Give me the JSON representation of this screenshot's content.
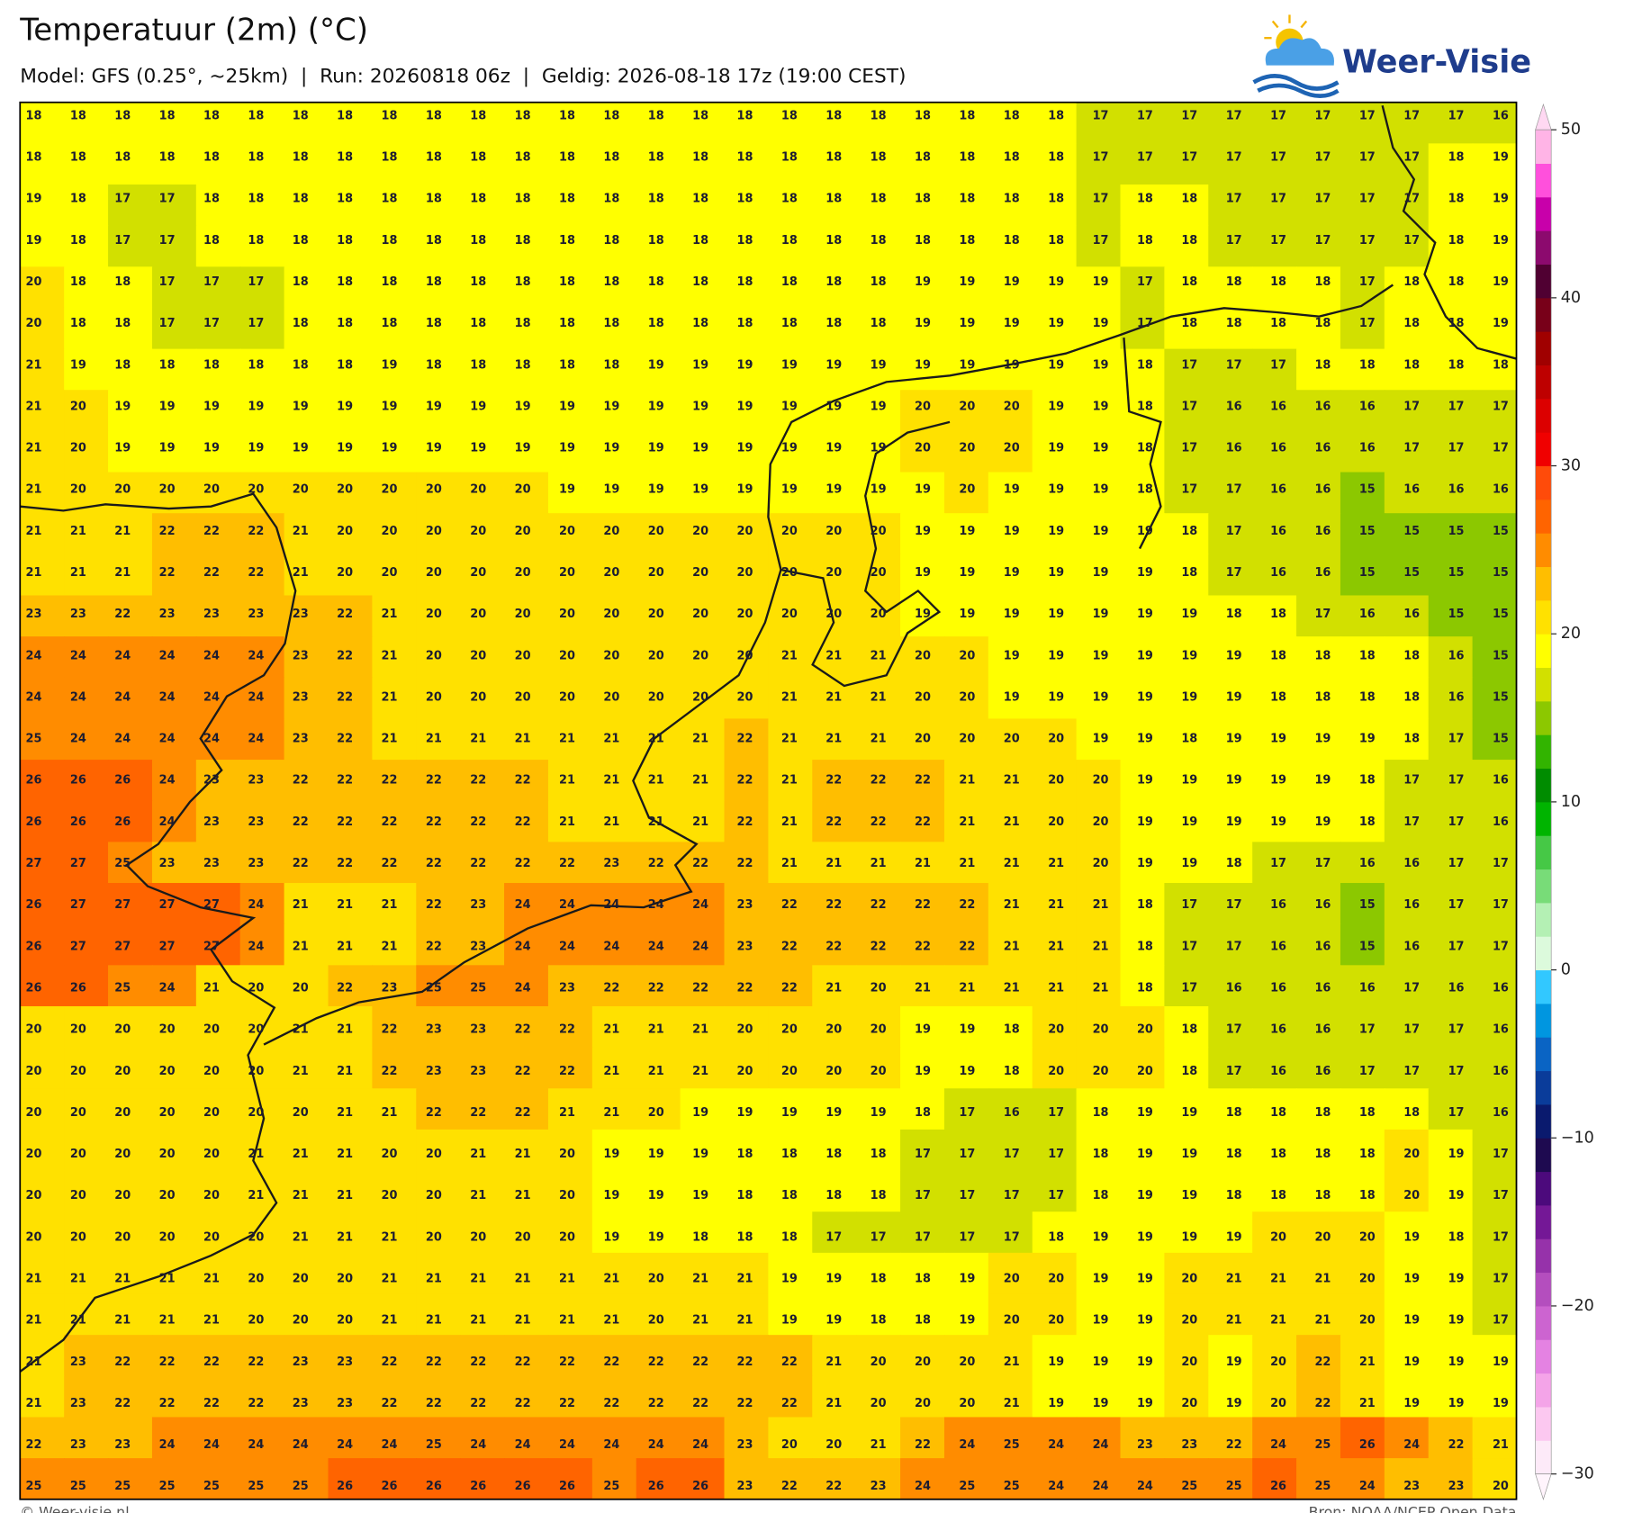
{
  "header": {
    "title": "Temperatuur (2m) (°C)",
    "subtitle": "Model: GFS (0.25°, ~25km)  |  Run: 20260818 06z  |  Geldig: 2026-08-18 17z (19:00 CEST)"
  },
  "logo": {
    "text": "Weer-Visie"
  },
  "map": {
    "values": [
      [
        18,
        18,
        18,
        18,
        18,
        18,
        18,
        18,
        18,
        18,
        18,
        18,
        18,
        18,
        18,
        18,
        18,
        18,
        18,
        18,
        18,
        18,
        18,
        18,
        17,
        17,
        17,
        17,
        17,
        17,
        17,
        17,
        17,
        16
      ],
      [
        18,
        18,
        18,
        18,
        18,
        18,
        18,
        18,
        18,
        18,
        18,
        18,
        18,
        18,
        18,
        18,
        18,
        18,
        18,
        18,
        18,
        18,
        18,
        18,
        17,
        17,
        17,
        17,
        17,
        17,
        17,
        17,
        18,
        19
      ],
      [
        19,
        18,
        17,
        17,
        18,
        18,
        18,
        18,
        18,
        18,
        18,
        18,
        18,
        18,
        18,
        18,
        18,
        18,
        18,
        18,
        18,
        18,
        18,
        18,
        17,
        18,
        18,
        17,
        17,
        17,
        17,
        17,
        18,
        19
      ],
      [
        19,
        18,
        17,
        17,
        18,
        18,
        18,
        18,
        18,
        18,
        18,
        18,
        18,
        18,
        18,
        18,
        18,
        18,
        18,
        18,
        18,
        18,
        18,
        18,
        17,
        18,
        18,
        17,
        17,
        17,
        17,
        17,
        18,
        19
      ],
      [
        20,
        18,
        18,
        17,
        17,
        17,
        18,
        18,
        18,
        18,
        18,
        18,
        18,
        18,
        18,
        18,
        18,
        18,
        18,
        18,
        19,
        19,
        19,
        19,
        19,
        17,
        18,
        18,
        18,
        18,
        17,
        18,
        18,
        19
      ],
      [
        20,
        18,
        18,
        17,
        17,
        17,
        18,
        18,
        18,
        18,
        18,
        18,
        18,
        18,
        18,
        18,
        18,
        18,
        18,
        18,
        19,
        19,
        19,
        19,
        19,
        17,
        18,
        18,
        18,
        18,
        17,
        18,
        18,
        19
      ],
      [
        21,
        19,
        18,
        18,
        18,
        18,
        18,
        18,
        19,
        18,
        18,
        18,
        18,
        18,
        19,
        19,
        19,
        19,
        19,
        19,
        19,
        19,
        19,
        19,
        19,
        18,
        17,
        17,
        17,
        18,
        18,
        18,
        18,
        18
      ],
      [
        21,
        20,
        19,
        19,
        19,
        19,
        19,
        19,
        19,
        19,
        19,
        19,
        19,
        19,
        19,
        19,
        19,
        19,
        19,
        19,
        20,
        20,
        20,
        19,
        19,
        18,
        17,
        16,
        16,
        16,
        16,
        17,
        17,
        17
      ],
      [
        21,
        20,
        19,
        19,
        19,
        19,
        19,
        19,
        19,
        19,
        19,
        19,
        19,
        19,
        19,
        19,
        19,
        19,
        19,
        19,
        20,
        20,
        20,
        19,
        19,
        18,
        17,
        16,
        16,
        16,
        16,
        17,
        17,
        17
      ],
      [
        21,
        20,
        20,
        20,
        20,
        20,
        20,
        20,
        20,
        20,
        20,
        20,
        19,
        19,
        19,
        19,
        19,
        19,
        19,
        19,
        19,
        20,
        19,
        19,
        19,
        18,
        17,
        17,
        16,
        16,
        15,
        16,
        16,
        16
      ],
      [
        21,
        21,
        21,
        22,
        22,
        22,
        21,
        20,
        20,
        20,
        20,
        20,
        20,
        20,
        20,
        20,
        20,
        20,
        20,
        20,
        19,
        19,
        19,
        19,
        19,
        19,
        18,
        17,
        16,
        16,
        15,
        15,
        15,
        15
      ],
      [
        21,
        21,
        21,
        22,
        22,
        22,
        21,
        20,
        20,
        20,
        20,
        20,
        20,
        20,
        20,
        20,
        20,
        20,
        20,
        20,
        19,
        19,
        19,
        19,
        19,
        19,
        18,
        17,
        16,
        16,
        15,
        15,
        15,
        15
      ],
      [
        23,
        23,
        22,
        23,
        23,
        23,
        23,
        22,
        21,
        20,
        20,
        20,
        20,
        20,
        20,
        20,
        20,
        20,
        20,
        20,
        19,
        19,
        19,
        19,
        19,
        19,
        19,
        18,
        18,
        17,
        16,
        16,
        15,
        15
      ],
      [
        24,
        24,
        24,
        24,
        24,
        24,
        23,
        22,
        21,
        20,
        20,
        20,
        20,
        20,
        20,
        20,
        20,
        21,
        21,
        21,
        20,
        20,
        19,
        19,
        19,
        19,
        19,
        19,
        18,
        18,
        18,
        18,
        16,
        15
      ],
      [
        24,
        24,
        24,
        24,
        24,
        24,
        23,
        22,
        21,
        20,
        20,
        20,
        20,
        20,
        20,
        20,
        20,
        21,
        21,
        21,
        20,
        20,
        19,
        19,
        19,
        19,
        19,
        19,
        18,
        18,
        18,
        18,
        16,
        15
      ],
      [
        25,
        24,
        24,
        24,
        24,
        24,
        23,
        22,
        21,
        21,
        21,
        21,
        21,
        21,
        21,
        21,
        22,
        21,
        21,
        21,
        20,
        20,
        20,
        20,
        19,
        19,
        18,
        19,
        19,
        19,
        19,
        18,
        17,
        15
      ],
      [
        26,
        26,
        26,
        24,
        23,
        23,
        22,
        22,
        22,
        22,
        22,
        22,
        21,
        21,
        21,
        21,
        22,
        21,
        22,
        22,
        22,
        21,
        21,
        20,
        20,
        19,
        19,
        19,
        19,
        19,
        18,
        17,
        17,
        16
      ],
      [
        26,
        26,
        26,
        24,
        23,
        23,
        22,
        22,
        22,
        22,
        22,
        22,
        21,
        21,
        21,
        21,
        22,
        21,
        22,
        22,
        22,
        21,
        21,
        20,
        20,
        19,
        19,
        19,
        19,
        19,
        18,
        17,
        17,
        16
      ],
      [
        27,
        27,
        25,
        23,
        23,
        23,
        22,
        22,
        22,
        22,
        22,
        22,
        22,
        23,
        22,
        22,
        22,
        21,
        21,
        21,
        21,
        21,
        21,
        21,
        20,
        19,
        19,
        18,
        17,
        17,
        16,
        16,
        17,
        17
      ],
      [
        26,
        27,
        27,
        27,
        27,
        24,
        21,
        21,
        21,
        22,
        23,
        24,
        24,
        24,
        24,
        24,
        23,
        22,
        22,
        22,
        22,
        22,
        21,
        21,
        21,
        18,
        17,
        17,
        16,
        16,
        15,
        16,
        17,
        17
      ],
      [
        26,
        27,
        27,
        27,
        27,
        24,
        21,
        21,
        21,
        22,
        23,
        24,
        24,
        24,
        24,
        24,
        23,
        22,
        22,
        22,
        22,
        22,
        21,
        21,
        21,
        18,
        17,
        17,
        16,
        16,
        15,
        16,
        17,
        17
      ],
      [
        26,
        26,
        25,
        24,
        21,
        20,
        20,
        22,
        23,
        25,
        25,
        24,
        23,
        22,
        22,
        22,
        22,
        22,
        21,
        20,
        21,
        21,
        21,
        21,
        21,
        18,
        17,
        16,
        16,
        16,
        16,
        17,
        16,
        16
      ],
      [
        20,
        20,
        20,
        20,
        20,
        20,
        21,
        21,
        22,
        23,
        23,
        22,
        22,
        21,
        21,
        21,
        20,
        20,
        20,
        20,
        19,
        19,
        18,
        20,
        20,
        20,
        18,
        17,
        16,
        16,
        17,
        17,
        17,
        16
      ],
      [
        20,
        20,
        20,
        20,
        20,
        20,
        21,
        21,
        22,
        23,
        23,
        22,
        22,
        21,
        21,
        21,
        20,
        20,
        20,
        20,
        19,
        19,
        18,
        20,
        20,
        20,
        18,
        17,
        16,
        16,
        17,
        17,
        17,
        16
      ],
      [
        20,
        20,
        20,
        20,
        20,
        20,
        20,
        21,
        21,
        22,
        22,
        22,
        21,
        21,
        20,
        19,
        19,
        19,
        19,
        19,
        18,
        17,
        16,
        17,
        18,
        19,
        19,
        18,
        18,
        18,
        18,
        18,
        17,
        16
      ],
      [
        20,
        20,
        20,
        20,
        20,
        21,
        21,
        21,
        20,
        20,
        21,
        21,
        20,
        19,
        19,
        19,
        18,
        18,
        18,
        18,
        17,
        17,
        17,
        17,
        18,
        19,
        19,
        18,
        18,
        18,
        18,
        20,
        19,
        17
      ],
      [
        20,
        20,
        20,
        20,
        20,
        21,
        21,
        21,
        20,
        20,
        21,
        21,
        20,
        19,
        19,
        19,
        18,
        18,
        18,
        18,
        17,
        17,
        17,
        17,
        18,
        19,
        19,
        18,
        18,
        18,
        18,
        20,
        19,
        17
      ],
      [
        20,
        20,
        20,
        20,
        20,
        20,
        21,
        21,
        21,
        20,
        20,
        20,
        20,
        19,
        19,
        18,
        18,
        18,
        17,
        17,
        17,
        17,
        17,
        18,
        19,
        19,
        19,
        19,
        20,
        20,
        20,
        19,
        18,
        17
      ],
      [
        21,
        21,
        21,
        21,
        21,
        20,
        20,
        20,
        21,
        21,
        21,
        21,
        21,
        21,
        20,
        21,
        21,
        19,
        19,
        18,
        18,
        19,
        20,
        20,
        19,
        19,
        20,
        21,
        21,
        21,
        20,
        19,
        19,
        17
      ],
      [
        21,
        21,
        21,
        21,
        21,
        20,
        20,
        20,
        21,
        21,
        21,
        21,
        21,
        21,
        20,
        21,
        21,
        19,
        19,
        18,
        18,
        19,
        20,
        20,
        19,
        19,
        20,
        21,
        21,
        21,
        20,
        19,
        19,
        17
      ],
      [
        21,
        23,
        22,
        22,
        22,
        22,
        23,
        23,
        22,
        22,
        22,
        22,
        22,
        22,
        22,
        22,
        22,
        22,
        21,
        20,
        20,
        20,
        21,
        19,
        19,
        19,
        20,
        19,
        20,
        22,
        21,
        19,
        19,
        19
      ],
      [
        21,
        23,
        22,
        22,
        22,
        22,
        23,
        23,
        22,
        22,
        22,
        22,
        22,
        22,
        22,
        22,
        22,
        22,
        21,
        20,
        20,
        20,
        21,
        19,
        19,
        19,
        20,
        19,
        20,
        22,
        21,
        19,
        19,
        19
      ],
      [
        22,
        23,
        23,
        24,
        24,
        24,
        24,
        24,
        24,
        25,
        24,
        24,
        24,
        24,
        24,
        24,
        23,
        20,
        20,
        21,
        22,
        24,
        25,
        24,
        24,
        23,
        23,
        22,
        24,
        25,
        26,
        24,
        22,
        21
      ],
      [
        25,
        25,
        25,
        25,
        25,
        25,
        25,
        26,
        26,
        26,
        26,
        26,
        26,
        25,
        26,
        26,
        23,
        22,
        22,
        23,
        24,
        25,
        25,
        24,
        24,
        24,
        25,
        25,
        26,
        25,
        24,
        23,
        23,
        20
      ]
    ]
  },
  "colorbar": {
    "ticks": [
      {
        "value": -30,
        "label": "−30"
      },
      {
        "value": -20,
        "label": "−20"
      },
      {
        "value": -10,
        "label": "−10"
      },
      0,
      10,
      20,
      30,
      40,
      50
    ],
    "colors": [
      "#fdeaf8",
      "#fcc8f0",
      "#f4a4e8",
      "#e482e2",
      "#cc64d0",
      "#b44ebe",
      "#9632aa",
      "#741896",
      "#4c0a7c",
      "#1e0a50",
      "#0a1a6e",
      "#0a3c9a",
      "#0a64c4",
      "#0096e0",
      "#32c8ff",
      "#dcfadc",
      "#b4f0b4",
      "#78dc78",
      "#46c846",
      "#00b400",
      "#008c00",
      "#32b400",
      "#8cc800",
      "#d2e000",
      "#ffff00",
      "#ffe100",
      "#ffbe00",
      "#ff8c00",
      "#ff6400",
      "#ff4b0a",
      "#f00000",
      "#dc0000",
      "#be0000",
      "#a00000",
      "#780019",
      "#500032",
      "#8c0a6e",
      "#c800aa",
      "#ff50dc",
      "#ffb4e6"
    ],
    "extend_colors": [
      "#fff4fc",
      "#ffd8f2"
    ]
  },
  "footer": {
    "left": "© Weer-visie.nl",
    "right": "Bron: NOAA/NCEP Open Data"
  }
}
